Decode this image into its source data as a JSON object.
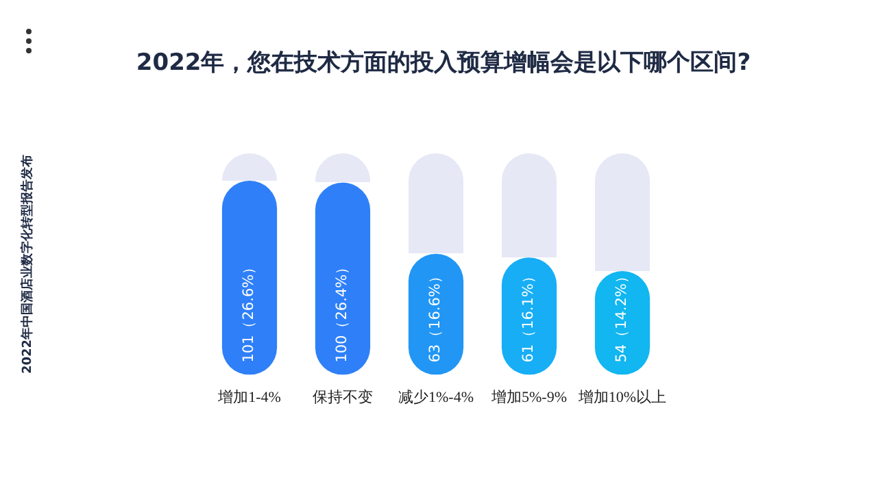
{
  "chart_data": {
    "type": "bar",
    "title": "2022年，您在技术方面的投入预算增幅会是以下哪个区间?",
    "categories": [
      "增加1-4%",
      "保持不变",
      "减少1%-4%",
      "增加5%-9%",
      "增加10%以上"
    ],
    "values": [
      101,
      100,
      63,
      61,
      54
    ],
    "colors": [
      "#2f7ff8",
      "#2f80f8",
      "#2196f5",
      "#17aef5",
      "#12b6f0"
    ],
    "value_labels": [
      "101（26.6%）",
      "100（26.4%）",
      "63（16.6%）",
      "61（16.1%）",
      "54（14.2%）"
    ],
    "annotations": [
      "2022年中国酒店业数字化转型报告发布"
    ],
    "grid": false,
    "legend": false
  }
}
